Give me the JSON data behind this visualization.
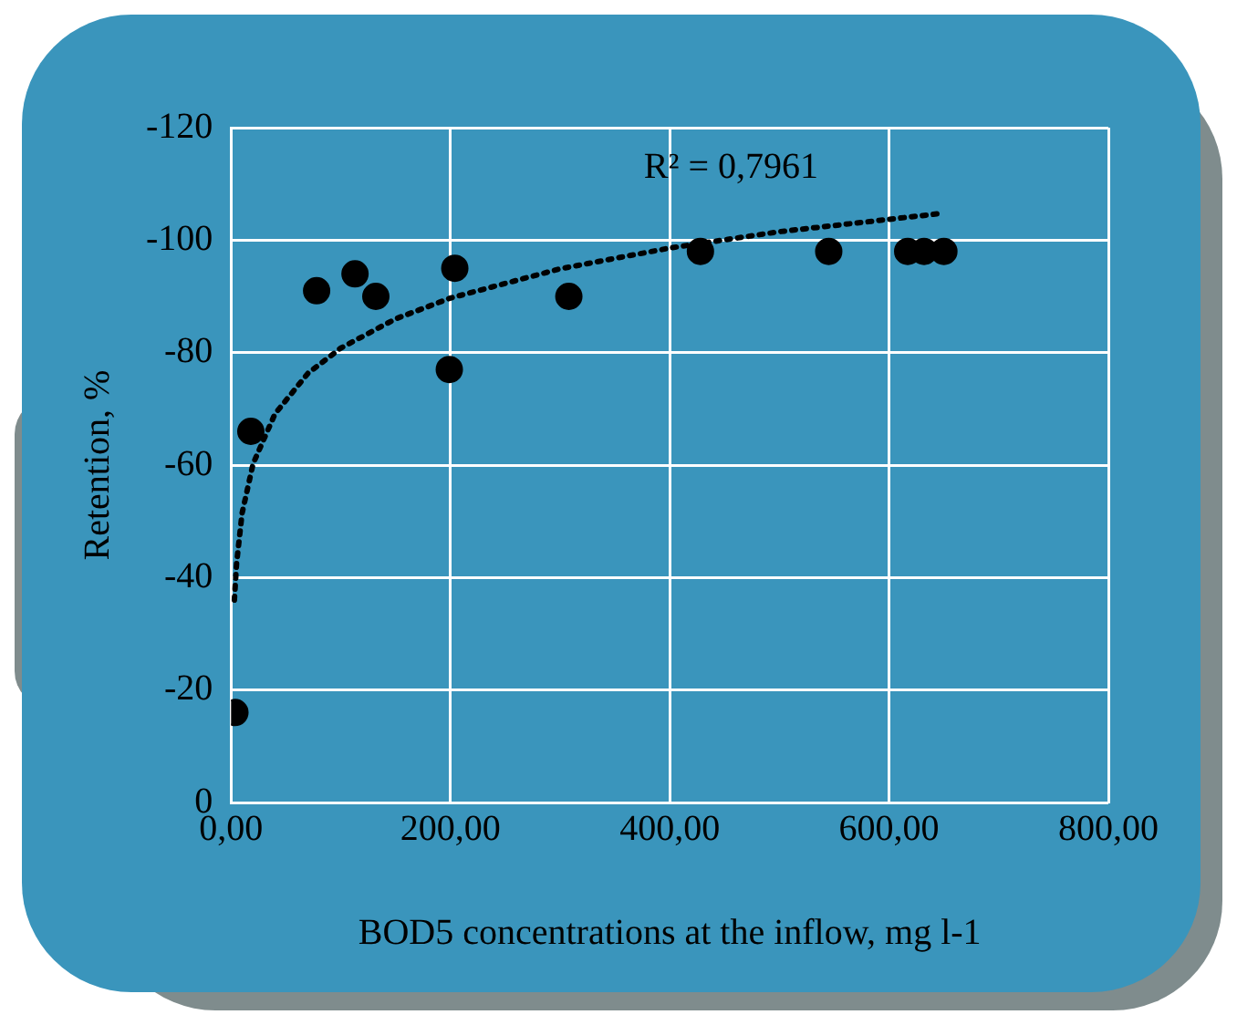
{
  "chart_data": {
    "type": "scatter",
    "xlabel": "BOD5 concentrations at the inflow, mg l-1",
    "ylabel": "Retention, %",
    "annotations": [
      "R² = 0,7961"
    ],
    "xlim": [
      0,
      800
    ],
    "xticks": [
      {
        "value": 0,
        "label": "0,00"
      },
      {
        "value": 200,
        "label": "200,00"
      },
      {
        "value": 400,
        "label": "400,00"
      },
      {
        "value": 600,
        "label": "600,00"
      },
      {
        "value": 800,
        "label": "800,00"
      }
    ],
    "ylim": [
      0,
      -120
    ],
    "yticks": [
      0,
      -20,
      -40,
      -60,
      -80,
      -100,
      -120
    ],
    "grid": true,
    "legend": false,
    "marker": "circle",
    "series": [
      {
        "color": "#000000",
        "x": [
          3.5,
          18,
          78,
          113,
          132,
          199,
          204,
          308,
          428,
          545,
          617,
          632,
          650
        ],
        "values": [
          -16,
          -66,
          -91,
          -94,
          -90,
          -77,
          -95,
          -90,
          -98,
          -98,
          -98,
          -98,
          -98
        ]
      },
      {
        "type": "line",
        "color": "#000000",
        "line_style": "dotted",
        "marker": "none",
        "x": [
          3,
          5,
          10,
          20,
          40,
          70,
          100,
          150,
          200,
          300,
          400,
          500,
          650
        ],
        "values": [
          -36,
          -42.5,
          -51.4,
          -60.2,
          -69.1,
          -76.3,
          -80.8,
          -86,
          -89.7,
          -94.9,
          -98.6,
          -101.5,
          -104.8
        ]
      }
    ]
  }
}
